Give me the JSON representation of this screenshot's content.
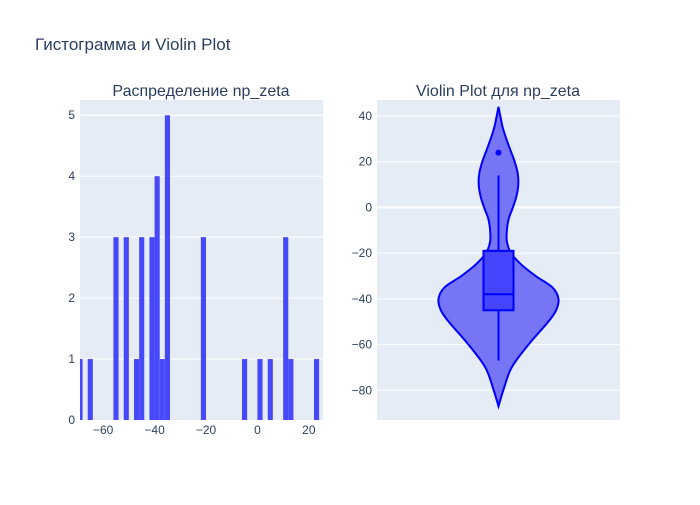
{
  "figure": {
    "title": "Гистограмма и Violin Plot",
    "colors": {
      "background": "#ffffff",
      "plot_bg": "#e5ecf6",
      "grid": "#ffffff",
      "text": "#2a3f5f",
      "bar": "#3f3ffb",
      "violin_fill": "#6f6ff5",
      "violin_line": "#0000ff",
      "box_fill": "#4545ff"
    }
  },
  "chart_data": [
    {
      "type": "bar",
      "subplot": "histogram",
      "title": "Распределение np_zeta",
      "xlim": [
        -69,
        25.5
      ],
      "ylim": [
        0,
        5.25
      ],
      "xticks": [
        -60,
        -40,
        -20,
        0,
        20
      ],
      "xtick_labels": [
        "−60",
        "−40",
        "−20",
        "0",
        "20"
      ],
      "yticks": [
        0,
        1,
        2,
        3,
        4,
        5
      ],
      "ytick_labels": [
        "0",
        "1",
        "2",
        "3",
        "4",
        "5"
      ],
      "bin_width": 2,
      "bins": [
        {
          "x0": -70,
          "count": 1
        },
        {
          "x0": -66,
          "count": 1
        },
        {
          "x0": -56,
          "count": 3
        },
        {
          "x0": -52,
          "count": 3
        },
        {
          "x0": -48,
          "count": 1
        },
        {
          "x0": -46,
          "count": 3
        },
        {
          "x0": -42,
          "count": 3
        },
        {
          "x0": -40,
          "count": 4
        },
        {
          "x0": -38,
          "count": 1
        },
        {
          "x0": -36,
          "count": 5
        },
        {
          "x0": -22,
          "count": 3
        },
        {
          "x0": -6,
          "count": 1
        },
        {
          "x0": 0,
          "count": 1
        },
        {
          "x0": 4,
          "count": 1
        },
        {
          "x0": 10,
          "count": 3
        },
        {
          "x0": 12,
          "count": 1
        },
        {
          "x0": 22,
          "count": 1
        }
      ]
    },
    {
      "type": "violin",
      "subplot": "violin",
      "title": "Violin Plot для np_zeta",
      "ylim": [
        -93,
        47
      ],
      "yticks": [
        -80,
        -60,
        -40,
        -20,
        0,
        20,
        40
      ],
      "ytick_labels": [
        "−80",
        "−60",
        "−40",
        "−20",
        "0",
        "20",
        "40"
      ],
      "range": [
        -87,
        44
      ],
      "box": {
        "q1": -45,
        "median": -38,
        "q3": -19,
        "lower_whisker": -67,
        "upper_whisker": 14
      },
      "outliers": [
        24
      ],
      "density": [
        [
          -87,
          0.0
        ],
        [
          -80,
          0.08
        ],
        [
          -70,
          0.22
        ],
        [
          -60,
          0.5
        ],
        [
          -50,
          0.83
        ],
        [
          -45,
          0.96
        ],
        [
          -40,
          1.0
        ],
        [
          -35,
          0.9
        ],
        [
          -30,
          0.62
        ],
        [
          -25,
          0.38
        ],
        [
          -20,
          0.21
        ],
        [
          -15,
          0.14
        ],
        [
          -10,
          0.14
        ],
        [
          -5,
          0.17
        ],
        [
          0,
          0.24
        ],
        [
          5,
          0.3
        ],
        [
          10,
          0.33
        ],
        [
          15,
          0.32
        ],
        [
          20,
          0.27
        ],
        [
          25,
          0.2
        ],
        [
          30,
          0.13
        ],
        [
          35,
          0.07
        ],
        [
          40,
          0.03
        ],
        [
          44,
          0.0
        ]
      ]
    }
  ]
}
